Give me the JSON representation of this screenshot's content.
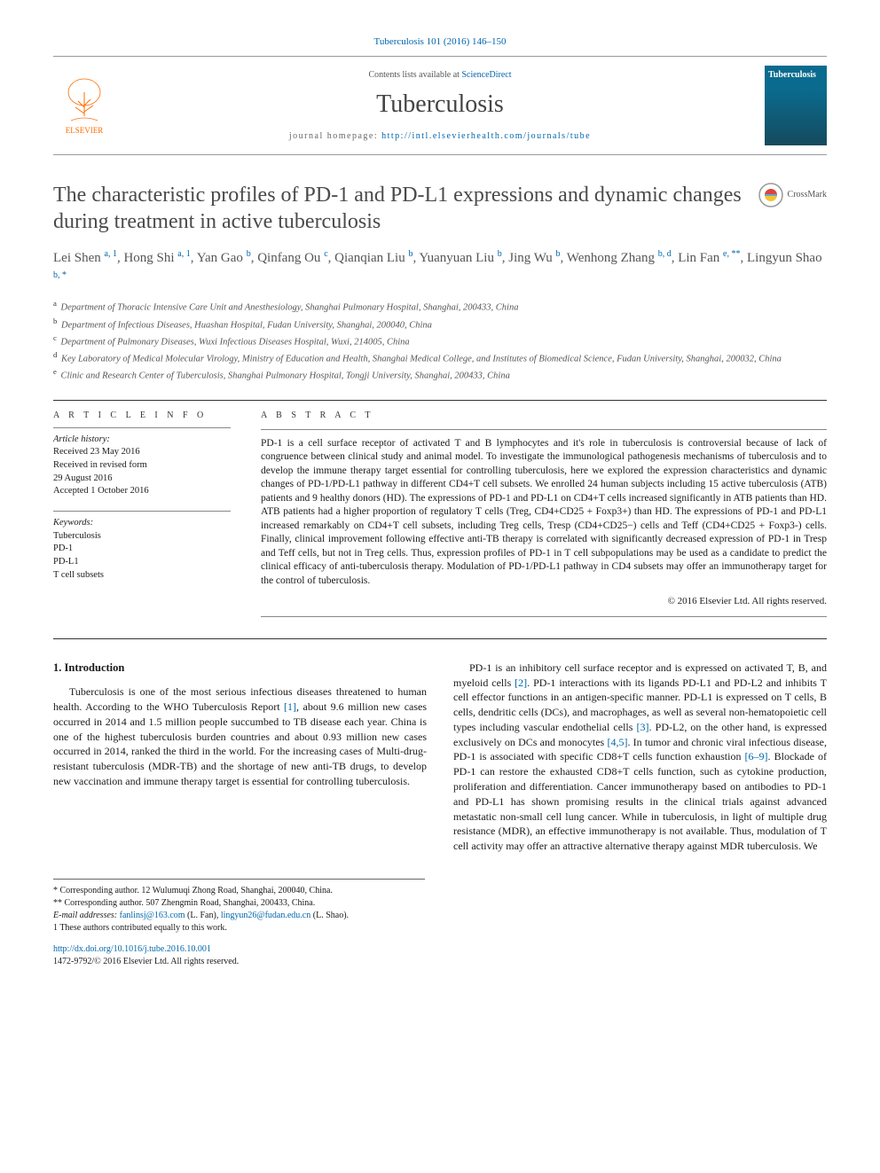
{
  "citation": {
    "text": "Tuberculosis 101 (2016) 146–150",
    "link_color": "#0066aa"
  },
  "header": {
    "contents_prefix": "Contents lists available at ",
    "contents_link": "ScienceDirect",
    "journal": "Tuberculosis",
    "homepage_prefix": "journal homepage: ",
    "homepage_url": "http://intl.elsevierhealth.com/journals/tube",
    "publisher_logo_label": "ELSEVIER",
    "cover_title": "Tuberculosis"
  },
  "article": {
    "title": "The characteristic profiles of PD-1 and PD-L1 expressions and dynamic changes during treatment in active tuberculosis",
    "crossmark_label": "CrossMark"
  },
  "authors_html": "Lei Shen <sup>a, 1</sup>, Hong Shi <sup>a, 1</sup>, Yan Gao <sup>b</sup>, Qinfang Ou <sup>c</sup>, Qianqian Liu <sup>b</sup>, Yuanyuan Liu <sup>b</sup>, Jing Wu <sup>b</sup>, Wenhong Zhang <sup>b, d</sup>, Lin Fan <sup>e, **</sup>, Lingyun Shao <sup>b, *</sup>",
  "affiliations": [
    {
      "sup": "a",
      "text": "Department of Thoracic Intensive Care Unit and Anesthesiology, Shanghai Pulmonary Hospital, Shanghai, 200433, China"
    },
    {
      "sup": "b",
      "text": "Department of Infectious Diseases, Huashan Hospital, Fudan University, Shanghai, 200040, China"
    },
    {
      "sup": "c",
      "text": "Department of Pulmonary Diseases, Wuxi Infectious Diseases Hospital, Wuxi, 214005, China"
    },
    {
      "sup": "d",
      "text": "Key Laboratory of Medical Molecular Virology, Ministry of Education and Health, Shanghai Medical College, and Institutes of Biomedical Science, Fudan University, Shanghai, 200032, China"
    },
    {
      "sup": "e",
      "text": "Clinic and Research Center of Tuberculosis, Shanghai Pulmonary Hospital, Tongji University, Shanghai, 200433, China"
    }
  ],
  "article_info": {
    "heading": "A R T I C L E   I N F O",
    "history_label": "Article history:",
    "history": [
      "Received 23 May 2016",
      "Received in revised form",
      "29 August 2016",
      "Accepted 1 October 2016"
    ],
    "keywords_label": "Keywords:",
    "keywords": [
      "Tuberculosis",
      "PD-1",
      "PD-L1",
      "T cell subsets"
    ]
  },
  "abstract": {
    "heading": "A B S T R A C T",
    "text": "PD-1 is a cell surface receptor of activated T and B lymphocytes and it's role in tuberculosis is controversial because of lack of congruence between clinical study and animal model. To investigate the immunological pathogenesis mechanisms of tuberculosis and to develop the immune therapy target essential for controlling tuberculosis, here we explored the expression characteristics and dynamic changes of PD-1/PD-L1 pathway in different CD4+T cell subsets. We enrolled 24 human subjects including 15 active tuberculosis (ATB) patients and 9 healthy donors (HD). The expressions of PD-1 and PD-L1 on CD4+T cells increased significantly in ATB patients than HD. ATB patients had a higher proportion of regulatory T cells (Treg, CD4+CD25 + Foxp3+) than HD. The expressions of PD-1 and PD-L1 increased remarkably on CD4+T cell subsets, including Treg cells, Tresp (CD4+CD25−) cells and Teff (CD4+CD25 + Foxp3-) cells. Finally, clinical improvement following effective anti-TB therapy is correlated with significantly decreased expression of PD-1 in Tresp and Teff cells, but not in Treg cells. Thus, expression profiles of PD-1 in T cell subpopulations may be used as a candidate to predict the clinical efficacy of anti-tuberculosis therapy. Modulation of PD-1/PD-L1 pathway in CD4 subsets may offer an immunotherapy target for the control of tuberculosis.",
    "copyright": "© 2016 Elsevier Ltd. All rights reserved."
  },
  "body": {
    "section_heading": "1. Introduction",
    "col1_p1": "Tuberculosis is one of the most serious infectious diseases threatened to human health. According to the WHO Tuberculosis Report [1], about 9.6 million new cases occurred in 2014 and 1.5 million people succumbed to TB disease each year. China is one of the highest tuberculosis burden countries and about 0.93 million new cases occurred in 2014, ranked the third in the world. For the increasing cases of Multi-drug-resistant tuberculosis (MDR-TB) and the shortage of new anti-TB drugs, to develop new vaccination and immune therapy target is essential for controlling tuberculosis.",
    "col2_p1": "PD-1 is an inhibitory cell surface receptor and is expressed on activated T, B, and myeloid cells [2]. PD-1 interactions with its ligands PD-L1 and PD-L2 and inhibits T cell effector functions in an antigen-specific manner. PD-L1 is expressed on T cells, B cells, dendritic cells (DCs), and macrophages, as well as several non-hematopoietic cell types including vascular endothelial cells [3]. PD-L2, on the other hand, is expressed exclusively on DCs and monocytes [4,5]. In tumor and chronic viral infectious disease, PD-1 is associated with specific CD8+T cells function exhaustion [6–9]. Blockade of PD-1 can restore the exhausted CD8+T cells function, such as cytokine production, proliferation and differentiation. Cancer immunotherapy based on antibodies to PD-1 and PD-L1 has shown promising results in the clinical trials against advanced metastatic non-small cell lung cancer. While in tuberculosis, in light of multiple drug resistance (MDR), an effective immunotherapy is not available. Thus, modulation of T cell activity may offer an attractive alternative therapy against MDR tuberculosis. We",
    "refs": {
      "r1": "[1]",
      "r2": "[2]",
      "r3": "[3]",
      "r45": "[4,5]",
      "r69": "[6–9]"
    }
  },
  "footnotes": {
    "corr1": "* Corresponding author. 12 Wulumuqi Zhong Road, Shanghai, 200040, China.",
    "corr2": "** Corresponding author. 507 Zhengmin Road, Shanghai, 200433, China.",
    "emails_label": "E-mail addresses: ",
    "email1": "fanlinsj@163.com",
    "email1_who": " (L. Fan), ",
    "email2": "lingyun26@fudan.edu.cn",
    "email2_who": " (L. Shao).",
    "equal": "1 These authors contributed equally to this work."
  },
  "doi": {
    "url": "http://dx.doi.org/10.1016/j.tube.2016.10.001",
    "issn_line": "1472-9792/© 2016 Elsevier Ltd. All rights reserved."
  },
  "colors": {
    "link": "#0066aa",
    "elsevier_orange": "#ff6c00",
    "text": "#1a1a1a",
    "muted": "#555555",
    "rule": "#333333"
  }
}
